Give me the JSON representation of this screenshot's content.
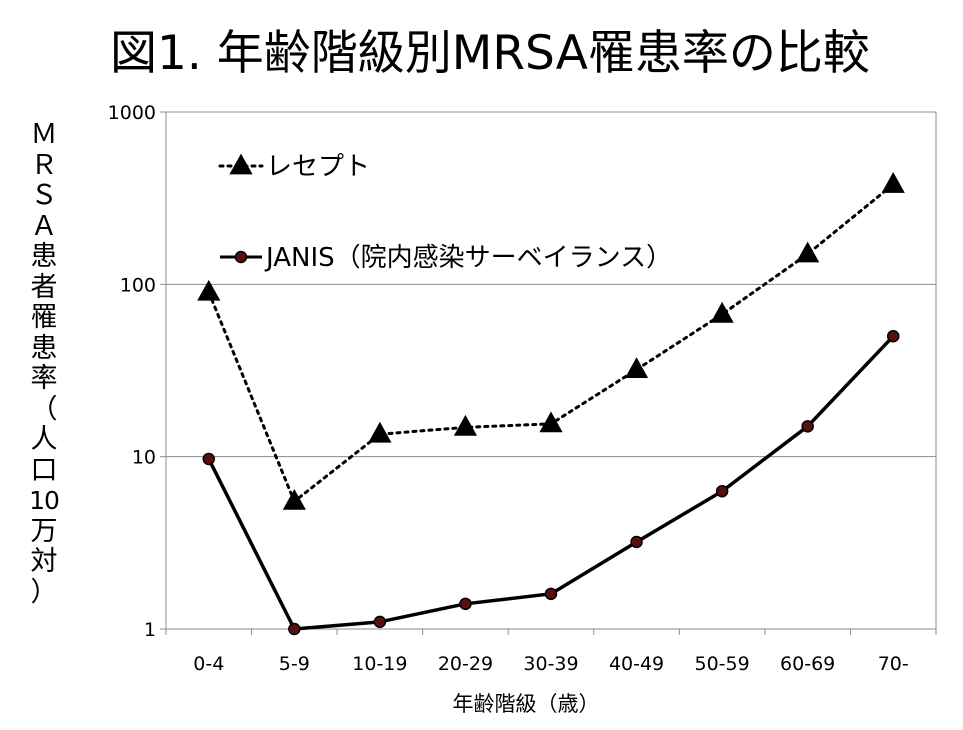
{
  "slide_title": "図1. 年齢階級別MRSA罹患率の比較",
  "y_axis_label_chars": [
    "Ｍ",
    "Ｒ",
    "Ｓ",
    "Ａ",
    "患",
    "者",
    "罹",
    "患",
    "率",
    "（",
    "人",
    "口",
    "10",
    "万",
    "対",
    "）"
  ],
  "chart_data": {
    "type": "line",
    "title": "図1. 年齢階級別MRSA罹患率の比較",
    "xlabel": "年齢階級（歳）",
    "ylabel": "ＭＲＳＡ患者罹患率（人口10万対）",
    "y_scale": "log",
    "ylim": [
      1,
      1000
    ],
    "y_ticks": [
      1,
      10,
      100,
      1000
    ],
    "y_tick_labels": [
      "1",
      "10",
      "100",
      "1000"
    ],
    "grid": "horizontal major gridlines",
    "legend_position": "top-left inside plot",
    "categories": [
      "0-4",
      "5-9",
      "10-19",
      "20-29",
      "30-39",
      "40-49",
      "50-59",
      "60-69",
      "70-"
    ],
    "series": [
      {
        "name": "レセプト",
        "line_style": "dotted",
        "marker": "triangle",
        "color": "#000000",
        "values": [
          90,
          5.5,
          13.5,
          14.8,
          15.5,
          32,
          67,
          150,
          380
        ]
      },
      {
        "name": "JANIS（院内感染サーベイランス）",
        "line_style": "solid",
        "marker": "circle",
        "color": "#000000",
        "marker_fill": "#5a0f0f",
        "values": [
          9.7,
          1.0,
          1.1,
          1.4,
          1.6,
          3.2,
          6.3,
          15,
          50
        ]
      }
    ]
  }
}
